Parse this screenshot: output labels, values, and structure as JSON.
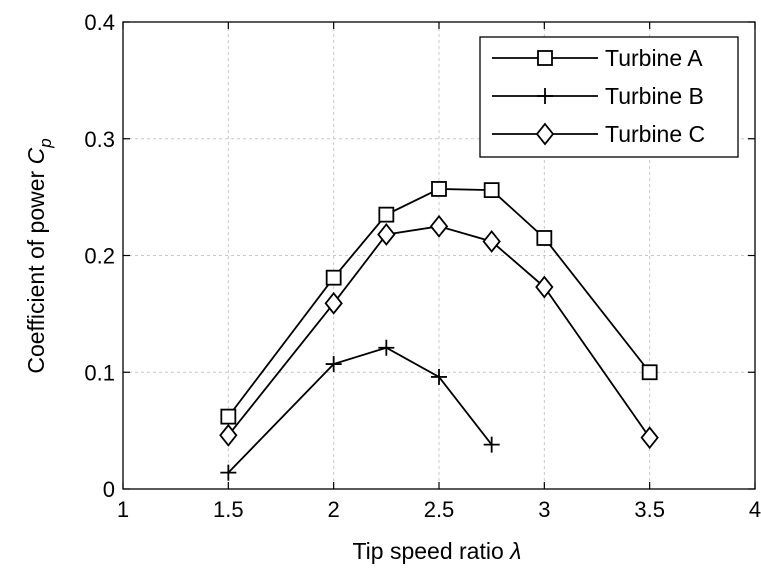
{
  "chart_data": {
    "type": "line",
    "xlabel": "Tip speed ratio",
    "xlabel_symbol": "λ",
    "ylabel": "Coefficient of power",
    "ylabel_symbol": "C",
    "ylabel_subscript": "p",
    "xlim": [
      1,
      4
    ],
    "ylim": [
      0,
      0.4
    ],
    "xticks": [
      1,
      1.5,
      2,
      2.5,
      3,
      3.5,
      4
    ],
    "xtick_labels": [
      "1",
      "1.5",
      "2",
      "2.5",
      "3",
      "3.5",
      "4"
    ],
    "yticks": [
      0,
      0.1,
      0.2,
      0.3,
      0.4
    ],
    "ytick_labels": [
      "0",
      "0.1",
      "0.2",
      "0.3",
      "0.4"
    ],
    "grid": true,
    "legend_position": "top-right",
    "series": [
      {
        "name": "Turbine A",
        "marker": "square",
        "x": [
          1.5,
          2,
          2.25,
          2.5,
          2.75,
          3,
          3.5
        ],
        "y": [
          0.062,
          0.181,
          0.235,
          0.257,
          0.256,
          0.215,
          0.1
        ]
      },
      {
        "name": "Turbine B",
        "marker": "plus",
        "x": [
          1.5,
          2,
          2.25,
          2.5,
          2.75
        ],
        "y": [
          0.014,
          0.107,
          0.121,
          0.096,
          0.038
        ]
      },
      {
        "name": "Turbine C",
        "marker": "diamond",
        "x": [
          1.5,
          2,
          2.25,
          2.5,
          2.75,
          3,
          3.5
        ],
        "y": [
          0.046,
          0.159,
          0.218,
          0.225,
          0.212,
          0.173,
          0.044
        ]
      }
    ]
  },
  "colors": {
    "line": "#000000",
    "grid": "#c8c8c8",
    "background": "#ffffff"
  }
}
